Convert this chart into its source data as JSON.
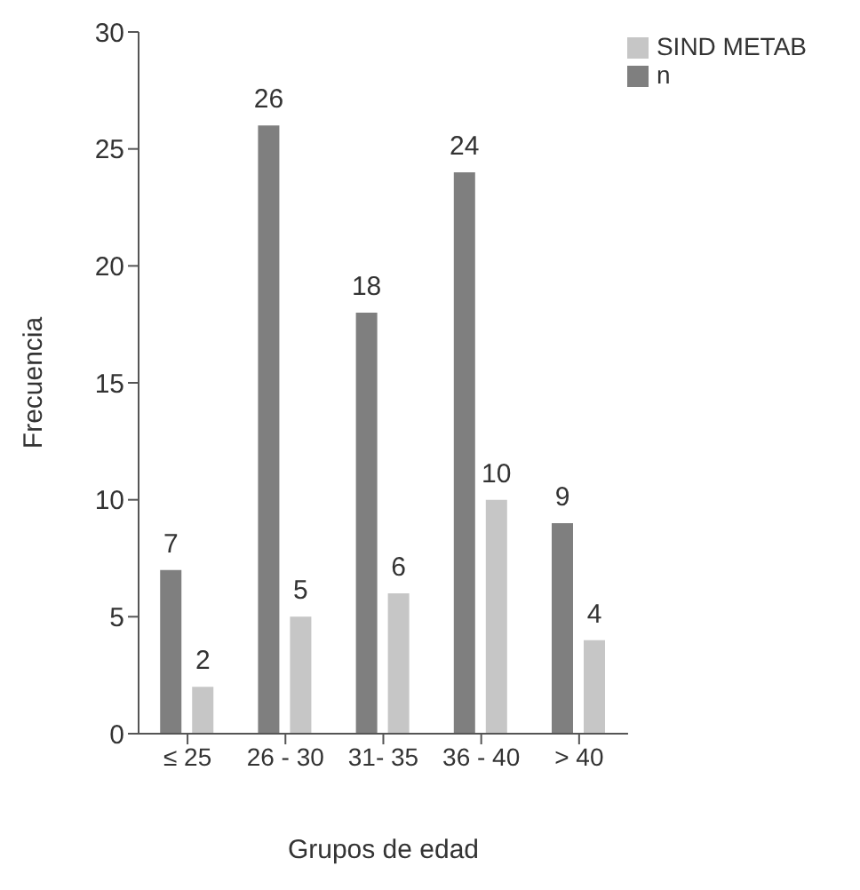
{
  "chart_data": {
    "type": "bar",
    "xlabel": "Grupos de edad",
    "ylabel": "Frecuencia",
    "categories": [
      "≤  25",
      "26 - 30",
      "31- 35",
      "36 - 40",
      "> 40"
    ],
    "series": [
      {
        "name": "n",
        "color": "#7f7f7f",
        "values": [
          7,
          26,
          18,
          24,
          9
        ]
      },
      {
        "name": "SIND METAB",
        "color": "#c6c6c6",
        "values": [
          2,
          5,
          6,
          10,
          4
        ]
      }
    ],
    "ylim": [
      0,
      30
    ],
    "yticks": [
      0,
      5,
      10,
      15,
      20,
      25,
      30
    ],
    "grid": false,
    "legend": "top right",
    "data_labels": true
  }
}
